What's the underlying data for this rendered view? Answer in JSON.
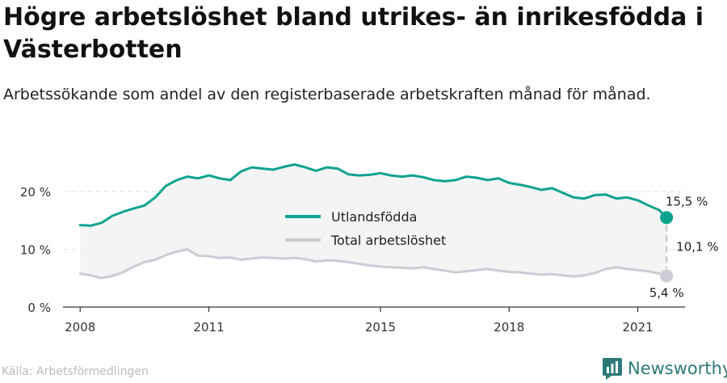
{
  "header": {
    "title": "Högre arbetslöshet bland utrikes- än inrikesfödda i Västerbotten",
    "subtitle": "Arbetssökande som andel av den registerbaserade arbetskraften månad för månad."
  },
  "footer": {
    "source": "Källa: Arbetsförmedlingen",
    "brand": "Newsworthy",
    "brand_icon": "newsworthy-logo-icon"
  },
  "colors": {
    "utlandsfodda": "#0fa38f",
    "total": "#cdcbd6",
    "band": "#f4f4f4",
    "axis": "#333333",
    "grid": "#dddddd"
  },
  "chart_data": {
    "type": "line",
    "ylim": [
      0,
      28
    ],
    "y_ticks": [
      0,
      10,
      20
    ],
    "y_tick_labels": [
      "0 %",
      "10 %",
      "20 %"
    ],
    "x_ticks": [
      2008,
      2011,
      2015,
      2018,
      2021
    ],
    "x_tick_labels": [
      "2008",
      "2011",
      "2015",
      "2018",
      "2021"
    ],
    "x_range": [
      2007.6,
      2022.1
    ],
    "series": [
      {
        "name": "Utlandsfödda",
        "points": [
          [
            2008.0,
            14.2
          ],
          [
            2008.25,
            14.1
          ],
          [
            2008.5,
            14.6
          ],
          [
            2008.75,
            15.8
          ],
          [
            2009.0,
            16.5
          ],
          [
            2009.25,
            17.1
          ],
          [
            2009.5,
            17.6
          ],
          [
            2009.75,
            19.0
          ],
          [
            2010.0,
            21.0
          ],
          [
            2010.25,
            22.0
          ],
          [
            2010.5,
            22.6
          ],
          [
            2010.75,
            22.3
          ],
          [
            2011.0,
            22.8
          ],
          [
            2011.25,
            22.3
          ],
          [
            2011.5,
            22.0
          ],
          [
            2011.75,
            23.5
          ],
          [
            2012.0,
            24.2
          ],
          [
            2012.25,
            24.0
          ],
          [
            2012.5,
            23.8
          ],
          [
            2012.75,
            24.3
          ],
          [
            2013.0,
            24.7
          ],
          [
            2013.25,
            24.2
          ],
          [
            2013.5,
            23.6
          ],
          [
            2013.75,
            24.2
          ],
          [
            2014.0,
            24.0
          ],
          [
            2014.25,
            23.0
          ],
          [
            2014.5,
            22.8
          ],
          [
            2014.75,
            22.9
          ],
          [
            2015.0,
            23.2
          ],
          [
            2015.25,
            22.8
          ],
          [
            2015.5,
            22.6
          ],
          [
            2015.75,
            22.8
          ],
          [
            2016.0,
            22.5
          ],
          [
            2016.25,
            22.0
          ],
          [
            2016.5,
            21.8
          ],
          [
            2016.75,
            22.0
          ],
          [
            2017.0,
            22.6
          ],
          [
            2017.25,
            22.4
          ],
          [
            2017.5,
            22.0
          ],
          [
            2017.75,
            22.3
          ],
          [
            2018.0,
            21.5
          ],
          [
            2018.25,
            21.2
          ],
          [
            2018.5,
            20.8
          ],
          [
            2018.75,
            20.3
          ],
          [
            2019.0,
            20.6
          ],
          [
            2019.25,
            19.8
          ],
          [
            2019.5,
            19.0
          ],
          [
            2019.75,
            18.8
          ],
          [
            2020.0,
            19.4
          ],
          [
            2020.25,
            19.5
          ],
          [
            2020.5,
            18.8
          ],
          [
            2020.75,
            19.0
          ],
          [
            2021.0,
            18.5
          ],
          [
            2021.25,
            17.6
          ],
          [
            2021.5,
            16.8
          ],
          [
            2021.67,
            15.5
          ]
        ]
      },
      {
        "name": "Total arbetslöshet",
        "points": [
          [
            2008.0,
            5.8
          ],
          [
            2008.25,
            5.5
          ],
          [
            2008.5,
            5.0
          ],
          [
            2008.75,
            5.4
          ],
          [
            2009.0,
            6.0
          ],
          [
            2009.25,
            7.0
          ],
          [
            2009.5,
            7.8
          ],
          [
            2009.75,
            8.2
          ],
          [
            2010.0,
            9.0
          ],
          [
            2010.25,
            9.6
          ],
          [
            2010.5,
            10.0
          ],
          [
            2010.75,
            8.9
          ],
          [
            2011.0,
            8.8
          ],
          [
            2011.25,
            8.5
          ],
          [
            2011.5,
            8.6
          ],
          [
            2011.75,
            8.2
          ],
          [
            2012.0,
            8.4
          ],
          [
            2012.25,
            8.6
          ],
          [
            2012.5,
            8.5
          ],
          [
            2012.75,
            8.4
          ],
          [
            2013.0,
            8.5
          ],
          [
            2013.25,
            8.3
          ],
          [
            2013.5,
            7.9
          ],
          [
            2013.75,
            8.1
          ],
          [
            2014.0,
            8.0
          ],
          [
            2014.25,
            7.8
          ],
          [
            2014.5,
            7.5
          ],
          [
            2014.75,
            7.2
          ],
          [
            2015.0,
            7.0
          ],
          [
            2015.25,
            6.9
          ],
          [
            2015.5,
            6.8
          ],
          [
            2015.75,
            6.7
          ],
          [
            2016.0,
            6.9
          ],
          [
            2016.25,
            6.6
          ],
          [
            2016.5,
            6.3
          ],
          [
            2016.75,
            6.0
          ],
          [
            2017.0,
            6.2
          ],
          [
            2017.25,
            6.4
          ],
          [
            2017.5,
            6.6
          ],
          [
            2017.75,
            6.3
          ],
          [
            2018.0,
            6.1
          ],
          [
            2018.25,
            6.0
          ],
          [
            2018.5,
            5.8
          ],
          [
            2018.75,
            5.6
          ],
          [
            2019.0,
            5.7
          ],
          [
            2019.25,
            5.5
          ],
          [
            2019.5,
            5.3
          ],
          [
            2019.75,
            5.5
          ],
          [
            2020.0,
            5.9
          ],
          [
            2020.25,
            6.6
          ],
          [
            2020.5,
            6.9
          ],
          [
            2020.75,
            6.6
          ],
          [
            2021.0,
            6.4
          ],
          [
            2021.25,
            6.2
          ],
          [
            2021.5,
            5.8
          ],
          [
            2021.67,
            5.4
          ]
        ]
      }
    ],
    "end_labels": {
      "utlandsfodda": "15,5 %",
      "difference": "10,1 %",
      "total": "5,4 %"
    },
    "legend_position": "center",
    "grid": true
  }
}
